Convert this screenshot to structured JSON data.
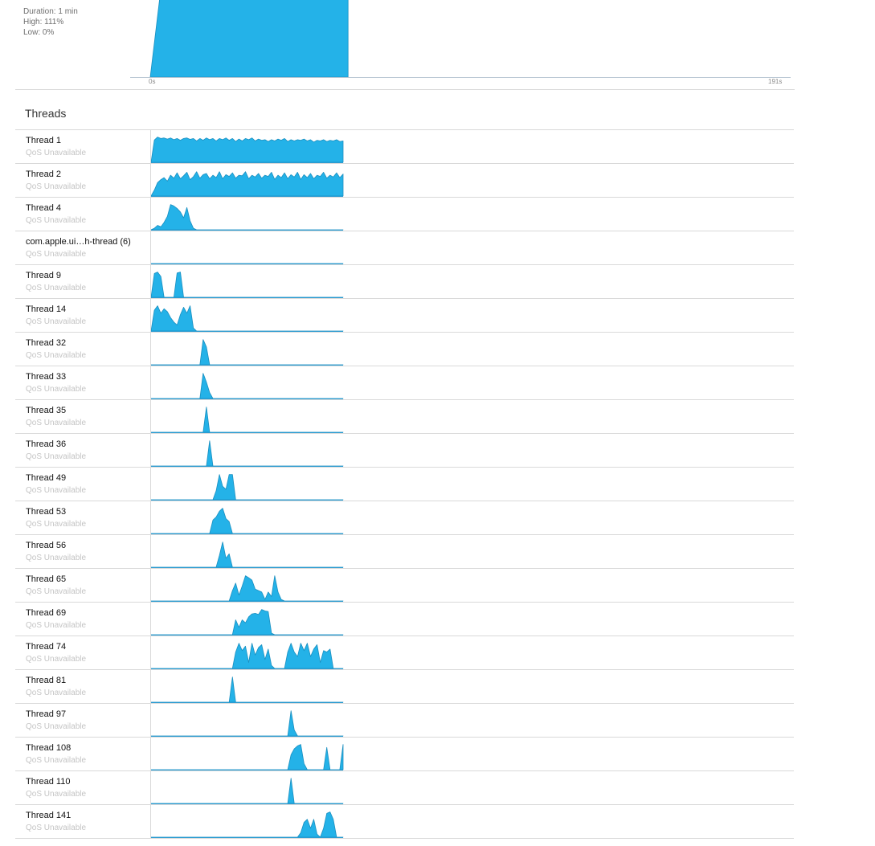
{
  "overview": {
    "stats": {
      "duration": "Duration: 1 min",
      "high": "High: 111%",
      "low": "Low: 0%"
    },
    "axis": {
      "start_label": "0s",
      "end_label": "191s"
    },
    "cpu_percent": [
      0,
      100,
      100,
      100,
      100,
      100,
      100,
      100,
      100,
      100,
      100,
      100,
      100,
      100,
      100,
      100,
      100,
      100,
      100,
      100,
      100,
      100,
      100,
      100,
      100,
      100,
      100
    ],
    "total_seconds": 191,
    "active_seconds": 59,
    "fill_color": "#24b2e8",
    "stroke_color": "#1a8fc0"
  },
  "threads_title": "Threads",
  "threads": [
    {
      "name": "Thread 1",
      "qos": "QoS Unavailable",
      "activity": [
        0,
        0.75,
        0.85,
        0.8,
        0.82,
        0.78,
        0.82,
        0.76,
        0.8,
        0.74,
        0.8,
        0.82,
        0.77,
        0.8,
        0.72,
        0.8,
        0.74,
        0.82,
        0.76,
        0.8,
        0.72,
        0.8,
        0.76,
        0.82,
        0.74,
        0.8,
        0.7,
        0.78,
        0.72,
        0.8,
        0.76,
        0.82,
        0.72,
        0.78,
        0.74,
        0.76,
        0.7,
        0.76,
        0.72,
        0.78,
        0.74,
        0.8,
        0.7,
        0.76,
        0.72,
        0.76,
        0.74,
        0.78,
        0.72,
        0.76,
        0.68,
        0.74,
        0.72,
        0.76,
        0.7,
        0.74,
        0.72,
        0.76,
        0.7,
        0.72
      ]
    },
    {
      "name": "Thread 2",
      "qos": "QoS Unavailable",
      "activity": [
        0,
        0.2,
        0.45,
        0.55,
        0.62,
        0.5,
        0.7,
        0.6,
        0.78,
        0.58,
        0.68,
        0.8,
        0.55,
        0.65,
        0.82,
        0.6,
        0.72,
        0.76,
        0.58,
        0.7,
        0.62,
        0.82,
        0.58,
        0.72,
        0.66,
        0.78,
        0.6,
        0.7,
        0.68,
        0.82,
        0.58,
        0.7,
        0.64,
        0.76,
        0.6,
        0.7,
        0.66,
        0.8,
        0.56,
        0.7,
        0.62,
        0.78,
        0.58,
        0.72,
        0.64,
        0.8,
        0.56,
        0.72,
        0.62,
        0.76,
        0.58,
        0.7,
        0.66,
        0.8,
        0.6,
        0.7,
        0.64,
        0.78,
        0.62,
        0.74
      ]
    },
    {
      "name": "Thread 4",
      "qos": "QoS Unavailable",
      "activity": [
        0,
        0.05,
        0.15,
        0.1,
        0.25,
        0.45,
        0.85,
        0.8,
        0.72,
        0.6,
        0.4,
        0.75,
        0.3,
        0.05,
        0,
        0,
        0,
        0,
        0,
        0,
        0,
        0,
        0,
        0,
        0,
        0,
        0,
        0,
        0,
        0,
        0,
        0,
        0,
        0,
        0,
        0,
        0,
        0,
        0,
        0,
        0,
        0,
        0,
        0,
        0,
        0,
        0,
        0,
        0,
        0,
        0,
        0,
        0,
        0,
        0,
        0,
        0,
        0,
        0,
        0
      ]
    },
    {
      "name": "com.apple.ui…h-thread (6)",
      "qos": "QoS Unavailable",
      "activity": [
        0,
        0,
        0,
        0,
        0,
        0,
        0,
        0,
        0,
        0,
        0,
        0,
        0,
        0,
        0,
        0,
        0,
        0,
        0,
        0,
        0,
        0,
        0,
        0,
        0,
        0,
        0,
        0,
        0,
        0,
        0,
        0,
        0,
        0,
        0,
        0,
        0,
        0,
        0,
        0,
        0,
        0,
        0,
        0,
        0,
        0,
        0,
        0,
        0,
        0,
        0,
        0,
        0,
        0,
        0,
        0,
        0,
        0,
        0,
        0
      ]
    },
    {
      "name": "Thread 9",
      "qos": "QoS Unavailable",
      "activity": [
        0,
        0.8,
        0.85,
        0.7,
        0,
        0,
        0,
        0,
        0.82,
        0.85,
        0,
        0,
        0,
        0,
        0,
        0,
        0,
        0,
        0,
        0,
        0,
        0,
        0,
        0,
        0,
        0,
        0,
        0,
        0,
        0,
        0,
        0,
        0,
        0,
        0,
        0,
        0,
        0,
        0,
        0,
        0,
        0,
        0,
        0,
        0,
        0,
        0,
        0,
        0,
        0,
        0,
        0,
        0,
        0,
        0,
        0,
        0,
        0,
        0,
        0
      ]
    },
    {
      "name": "Thread 14",
      "qos": "QoS Unavailable",
      "activity": [
        0,
        0.7,
        0.85,
        0.6,
        0.75,
        0.65,
        0.45,
        0.3,
        0.2,
        0.55,
        0.8,
        0.6,
        0.85,
        0.1,
        0,
        0,
        0,
        0,
        0,
        0,
        0,
        0,
        0,
        0,
        0,
        0,
        0,
        0,
        0,
        0,
        0,
        0,
        0,
        0,
        0,
        0,
        0,
        0,
        0,
        0,
        0,
        0,
        0,
        0,
        0,
        0,
        0,
        0,
        0,
        0,
        0,
        0,
        0,
        0,
        0,
        0,
        0,
        0,
        0,
        0
      ]
    },
    {
      "name": "Thread 32",
      "qos": "QoS Unavailable",
      "activity": [
        0,
        0,
        0,
        0,
        0,
        0,
        0,
        0,
        0,
        0,
        0,
        0,
        0,
        0,
        0,
        0,
        0.85,
        0.6,
        0,
        0,
        0,
        0,
        0,
        0,
        0,
        0,
        0,
        0,
        0,
        0,
        0,
        0,
        0,
        0,
        0,
        0,
        0,
        0,
        0,
        0,
        0,
        0,
        0,
        0,
        0,
        0,
        0,
        0,
        0,
        0,
        0,
        0,
        0,
        0,
        0,
        0,
        0,
        0,
        0,
        0
      ]
    },
    {
      "name": "Thread 33",
      "qos": "QoS Unavailable",
      "activity": [
        0,
        0,
        0,
        0,
        0,
        0,
        0,
        0,
        0,
        0,
        0,
        0,
        0,
        0,
        0,
        0,
        0.85,
        0.55,
        0.2,
        0,
        0,
        0,
        0,
        0,
        0,
        0,
        0,
        0,
        0,
        0,
        0,
        0,
        0,
        0,
        0,
        0,
        0,
        0,
        0,
        0,
        0,
        0,
        0,
        0,
        0,
        0,
        0,
        0,
        0,
        0,
        0,
        0,
        0,
        0,
        0,
        0,
        0,
        0,
        0,
        0
      ]
    },
    {
      "name": "Thread 35",
      "qos": "QoS Unavailable",
      "activity": [
        0,
        0,
        0,
        0,
        0,
        0,
        0,
        0,
        0,
        0,
        0,
        0,
        0,
        0,
        0,
        0,
        0,
        0.85,
        0,
        0,
        0,
        0,
        0,
        0,
        0,
        0,
        0,
        0,
        0,
        0,
        0,
        0,
        0,
        0,
        0,
        0,
        0,
        0,
        0,
        0,
        0,
        0,
        0,
        0,
        0,
        0,
        0,
        0,
        0,
        0,
        0,
        0,
        0,
        0,
        0,
        0,
        0,
        0,
        0,
        0
      ]
    },
    {
      "name": "Thread 36",
      "qos": "QoS Unavailable",
      "activity": [
        0,
        0,
        0,
        0,
        0,
        0,
        0,
        0,
        0,
        0,
        0,
        0,
        0,
        0,
        0,
        0,
        0,
        0,
        0.85,
        0,
        0,
        0,
        0,
        0,
        0,
        0,
        0,
        0,
        0,
        0,
        0,
        0,
        0,
        0,
        0,
        0,
        0,
        0,
        0,
        0,
        0,
        0,
        0,
        0,
        0,
        0,
        0,
        0,
        0,
        0,
        0,
        0,
        0,
        0,
        0,
        0,
        0,
        0,
        0,
        0
      ]
    },
    {
      "name": "Thread 49",
      "qos": "QoS Unavailable",
      "activity": [
        0,
        0,
        0,
        0,
        0,
        0,
        0,
        0,
        0,
        0,
        0,
        0,
        0,
        0,
        0,
        0,
        0,
        0,
        0,
        0,
        0.3,
        0.85,
        0.45,
        0.35,
        0.85,
        0.85,
        0,
        0,
        0,
        0,
        0,
        0,
        0,
        0,
        0,
        0,
        0,
        0,
        0,
        0,
        0,
        0,
        0,
        0,
        0,
        0,
        0,
        0,
        0,
        0,
        0,
        0,
        0,
        0,
        0,
        0,
        0,
        0,
        0,
        0
      ]
    },
    {
      "name": "Thread 53",
      "qos": "QoS Unavailable",
      "activity": [
        0,
        0,
        0,
        0,
        0,
        0,
        0,
        0,
        0,
        0,
        0,
        0,
        0,
        0,
        0,
        0,
        0,
        0,
        0,
        0.45,
        0.55,
        0.75,
        0.85,
        0.5,
        0.4,
        0,
        0,
        0,
        0,
        0,
        0,
        0,
        0,
        0,
        0,
        0,
        0,
        0,
        0,
        0,
        0,
        0,
        0,
        0,
        0,
        0,
        0,
        0,
        0,
        0,
        0,
        0,
        0,
        0,
        0,
        0,
        0,
        0,
        0,
        0
      ]
    },
    {
      "name": "Thread 56",
      "qos": "QoS Unavailable",
      "activity": [
        0,
        0,
        0,
        0,
        0,
        0,
        0,
        0,
        0,
        0,
        0,
        0,
        0,
        0,
        0,
        0,
        0,
        0,
        0,
        0,
        0,
        0.4,
        0.85,
        0.3,
        0.45,
        0,
        0,
        0,
        0,
        0,
        0,
        0,
        0,
        0,
        0,
        0,
        0,
        0,
        0,
        0,
        0,
        0,
        0,
        0,
        0,
        0,
        0,
        0,
        0,
        0,
        0,
        0,
        0,
        0,
        0,
        0,
        0,
        0,
        0,
        0
      ]
    },
    {
      "name": "Thread 65",
      "qos": "QoS Unavailable",
      "activity": [
        0,
        0,
        0,
        0,
        0,
        0,
        0,
        0,
        0,
        0,
        0,
        0,
        0,
        0,
        0,
        0,
        0,
        0,
        0,
        0,
        0,
        0,
        0,
        0,
        0,
        0.35,
        0.6,
        0.2,
        0.5,
        0.85,
        0.78,
        0.7,
        0.4,
        0.35,
        0.3,
        0.05,
        0.3,
        0.15,
        0.85,
        0.3,
        0.05,
        0,
        0,
        0,
        0,
        0,
        0,
        0,
        0,
        0,
        0,
        0,
        0,
        0,
        0,
        0,
        0,
        0,
        0,
        0
      ]
    },
    {
      "name": "Thread 69",
      "qos": "QoS Unavailable",
      "activity": [
        0,
        0,
        0,
        0,
        0,
        0,
        0,
        0,
        0,
        0,
        0,
        0,
        0,
        0,
        0,
        0,
        0,
        0,
        0,
        0,
        0,
        0,
        0,
        0,
        0,
        0,
        0.5,
        0.25,
        0.5,
        0.4,
        0.6,
        0.7,
        0.72,
        0.68,
        0.85,
        0.8,
        0.78,
        0.05,
        0,
        0,
        0,
        0,
        0,
        0,
        0,
        0,
        0,
        0,
        0,
        0,
        0,
        0,
        0,
        0,
        0,
        0,
        0,
        0,
        0,
        0
      ]
    },
    {
      "name": "Thread 74",
      "qos": "QoS Unavailable",
      "activity": [
        0,
        0,
        0,
        0,
        0,
        0,
        0,
        0,
        0,
        0,
        0,
        0,
        0,
        0,
        0,
        0,
        0,
        0,
        0,
        0,
        0,
        0,
        0,
        0,
        0,
        0,
        0.55,
        0.85,
        0.6,
        0.75,
        0.2,
        0.85,
        0.45,
        0.7,
        0.8,
        0.3,
        0.65,
        0.1,
        0,
        0,
        0,
        0,
        0.55,
        0.85,
        0.55,
        0.4,
        0.85,
        0.6,
        0.85,
        0.4,
        0.65,
        0.8,
        0.2,
        0.6,
        0.55,
        0.65,
        0,
        0,
        0,
        0
      ]
    },
    {
      "name": "Thread 81",
      "qos": "QoS Unavailable",
      "activity": [
        0,
        0,
        0,
        0,
        0,
        0,
        0,
        0,
        0,
        0,
        0,
        0,
        0,
        0,
        0,
        0,
        0,
        0,
        0,
        0,
        0,
        0,
        0,
        0,
        0,
        0.85,
        0,
        0,
        0,
        0,
        0,
        0,
        0,
        0,
        0,
        0,
        0,
        0,
        0,
        0,
        0,
        0,
        0,
        0,
        0,
        0,
        0,
        0,
        0,
        0,
        0,
        0,
        0,
        0,
        0,
        0,
        0,
        0,
        0,
        0
      ]
    },
    {
      "name": "Thread 97",
      "qos": "QoS Unavailable",
      "activity": [
        0,
        0,
        0,
        0,
        0,
        0,
        0,
        0,
        0,
        0,
        0,
        0,
        0,
        0,
        0,
        0,
        0,
        0,
        0,
        0,
        0,
        0,
        0,
        0,
        0,
        0,
        0,
        0,
        0,
        0,
        0,
        0,
        0,
        0,
        0,
        0,
        0,
        0,
        0,
        0,
        0,
        0,
        0,
        0.85,
        0.2,
        0,
        0,
        0,
        0,
        0,
        0,
        0,
        0,
        0,
        0,
        0,
        0,
        0,
        0,
        0
      ]
    },
    {
      "name": "Thread 108",
      "qos": "QoS Unavailable",
      "activity": [
        0,
        0,
        0,
        0,
        0,
        0,
        0,
        0,
        0,
        0,
        0,
        0,
        0,
        0,
        0,
        0,
        0,
        0,
        0,
        0,
        0,
        0,
        0,
        0,
        0,
        0,
        0,
        0,
        0,
        0,
        0,
        0,
        0,
        0,
        0,
        0,
        0,
        0,
        0,
        0,
        0,
        0,
        0,
        0.5,
        0.7,
        0.8,
        0.85,
        0.2,
        0,
        0,
        0,
        0,
        0,
        0,
        0.75,
        0,
        0,
        0,
        0,
        0.85
      ]
    },
    {
      "name": "Thread 110",
      "qos": "QoS Unavailable",
      "activity": [
        0,
        0,
        0,
        0,
        0,
        0,
        0,
        0,
        0,
        0,
        0,
        0,
        0,
        0,
        0,
        0,
        0,
        0,
        0,
        0,
        0,
        0,
        0,
        0,
        0,
        0,
        0,
        0,
        0,
        0,
        0,
        0,
        0,
        0,
        0,
        0,
        0,
        0,
        0,
        0,
        0,
        0,
        0,
        0.85,
        0,
        0,
        0,
        0,
        0,
        0,
        0,
        0,
        0,
        0,
        0,
        0,
        0,
        0,
        0,
        0
      ]
    },
    {
      "name": "Thread 141",
      "qos": "QoS Unavailable",
      "activity": [
        0,
        0,
        0,
        0,
        0,
        0,
        0,
        0,
        0,
        0,
        0,
        0,
        0,
        0,
        0,
        0,
        0,
        0,
        0,
        0,
        0,
        0,
        0,
        0,
        0,
        0,
        0,
        0,
        0,
        0,
        0,
        0,
        0,
        0,
        0,
        0,
        0,
        0,
        0,
        0,
        0,
        0,
        0,
        0,
        0,
        0,
        0.15,
        0.5,
        0.6,
        0.3,
        0.6,
        0.1,
        0,
        0.3,
        0.8,
        0.85,
        0.6,
        0,
        0,
        0
      ]
    }
  ],
  "colors": {
    "fill": "#24b2e8",
    "stroke": "#1a8fc0",
    "baseline": "#2a9bd1"
  }
}
